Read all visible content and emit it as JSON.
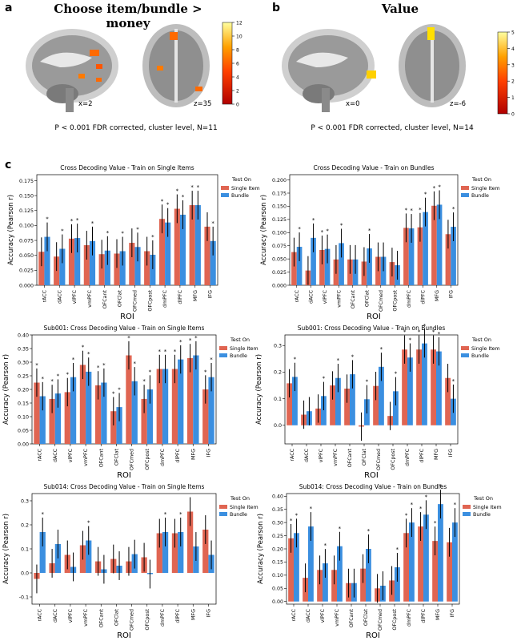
{
  "panels": {
    "a": {
      "letter": "a",
      "title": "Choose item/bundle > money",
      "coord1": "x=2",
      "coord2": "z=35",
      "stat": "P < 0.001 FDR corrected, cluster level, N=11",
      "cbar_ticks": [
        "0",
        "2",
        "4",
        "6",
        "8",
        "10",
        "12"
      ]
    },
    "b": {
      "letter": "b",
      "title": "Value",
      "coord1": "x=0",
      "coord2": "z=-6",
      "stat": "P < 0.001 FDR corrected, cluster level, N=14",
      "cbar_ticks": [
        "0",
        "1",
        "2",
        "3",
        "4",
        "5"
      ]
    },
    "c": {
      "letter": "c"
    }
  },
  "colors": {
    "single": "#e06552",
    "bundle": "#3b8fe0",
    "brain_light": "#d9d9d9",
    "brain_dark": "#555555",
    "blob": "#ff7a00"
  },
  "chart_data": [
    {
      "type": "bar",
      "title": "Cross Decoding Value - Train on Single Items",
      "xlabel": "ROI",
      "ylabel": "Accuracy (Pearson r)",
      "categories": [
        "rACC",
        "dACC",
        "vlPFC",
        "vmPFC",
        "OFCant",
        "OFClat",
        "OFCmed",
        "OFCpost",
        "dmPFC",
        "dlPFC",
        "MFG",
        "IFG"
      ],
      "ylim": [
        0,
        0.185
      ],
      "yticks": [
        "0.000",
        "0.025",
        "0.050",
        "0.075",
        "0.100",
        "0.125",
        "0.150",
        "0.175"
      ],
      "legend_title": "Test On",
      "series": [
        {
          "name": "Single Item",
          "values": [
            0.056,
            0.048,
            0.078,
            0.067,
            0.052,
            0.053,
            0.071,
            0.057,
            0.111,
            0.128,
            0.134,
            0.098
          ],
          "stars": [
            false,
            false,
            true,
            false,
            false,
            false,
            false,
            false,
            true,
            true,
            true,
            false
          ]
        },
        {
          "name": "Bundle",
          "values": [
            0.081,
            0.061,
            0.079,
            0.074,
            0.058,
            0.057,
            0.064,
            0.051,
            0.105,
            0.118,
            0.134,
            0.074
          ],
          "stars": [
            true,
            true,
            true,
            true,
            true,
            true,
            true,
            true,
            true,
            true,
            true,
            true
          ]
        }
      ]
    },
    {
      "type": "bar",
      "title": "Cross Decoding Value - Train on Bundles",
      "xlabel": "ROI",
      "ylabel": "Accuracy (Pearson r)",
      "categories": [
        "rACC",
        "dACC",
        "vlPFC",
        "vmPFC",
        "OFCant",
        "OFClat",
        "OFCmed",
        "OFCpost",
        "dmPFC",
        "dlPFC",
        "MFG",
        "IFG"
      ],
      "ylim": [
        0,
        0.21
      ],
      "yticks": [
        "0.000",
        "0.025",
        "0.050",
        "0.075",
        "0.100",
        "0.125",
        "0.150",
        "0.175",
        "0.200"
      ],
      "legend_title": "Test On",
      "series": [
        {
          "name": "Single Item",
          "values": [
            0.063,
            0.028,
            0.067,
            0.049,
            0.049,
            0.045,
            0.054,
            0.044,
            0.109,
            0.11,
            0.151,
            0.097
          ],
          "stars": [
            false,
            false,
            true,
            false,
            false,
            false,
            false,
            false,
            true,
            true,
            true,
            false
          ]
        },
        {
          "name": "Bundle",
          "values": [
            0.073,
            0.09,
            0.069,
            0.08,
            0.049,
            0.07,
            0.054,
            0.038,
            0.108,
            0.139,
            0.153,
            0.111
          ],
          "stars": [
            true,
            true,
            true,
            true,
            false,
            true,
            false,
            false,
            true,
            true,
            true,
            true
          ]
        }
      ]
    },
    {
      "type": "bar",
      "title": "Sub001: Cross Decoding Value - Train on Single Items",
      "xlabel": "ROI",
      "ylabel": "Accuracy (Pearson r)",
      "categories": [
        "rACC",
        "dACC",
        "vlPFC",
        "vmPFC",
        "OFCant",
        "OFClat",
        "OFCmed",
        "OFCpost",
        "dmPFC",
        "dlPFC",
        "MFG",
        "IFG"
      ],
      "ylim": [
        0,
        0.4
      ],
      "yticks": [
        "0.00",
        "0.05",
        "0.10",
        "0.15",
        "0.20",
        "0.25",
        "0.30",
        "0.35",
        "0.40"
      ],
      "legend_title": "Test On",
      "series": [
        {
          "name": "Single Item",
          "values": [
            0.225,
            0.165,
            0.19,
            0.29,
            0.215,
            0.12,
            0.325,
            0.165,
            0.275,
            0.275,
            0.315,
            0.2
          ],
          "stars": [
            true,
            true,
            true,
            true,
            true,
            true,
            true,
            true,
            true,
            true,
            true,
            true
          ]
        },
        {
          "name": "Bundle",
          "values": [
            0.175,
            0.185,
            0.245,
            0.265,
            0.225,
            0.135,
            0.23,
            0.2,
            0.275,
            0.31,
            0.325,
            0.245
          ],
          "stars": [
            true,
            true,
            true,
            true,
            true,
            true,
            true,
            true,
            true,
            true,
            true,
            true
          ]
        }
      ]
    },
    {
      "type": "bar",
      "title": "Sub001: Cross Decoding Value - Train on Bundles",
      "xlabel": "ROI",
      "ylabel": "Accuracy (Pearson r)",
      "categories": [
        "rACC",
        "dACC",
        "vlPFC",
        "vmPFC",
        "OFCant",
        "OFClat",
        "OFCmed",
        "OFCpost",
        "dmPFC",
        "dlPFC",
        "MFG",
        "IFG"
      ],
      "ylim": [
        -0.07,
        0.34
      ],
      "yticks": [
        "0.0",
        "0.1",
        "0.2",
        "0.3"
      ],
      "ytick_values": [
        0,
        0.1,
        0.2,
        0.3
      ],
      "legend_title": "Test On",
      "series": [
        {
          "name": "Single Item",
          "values": [
            0.158,
            0.04,
            0.063,
            0.15,
            0.138,
            -0.005,
            0.148,
            0.035,
            0.285,
            0.285,
            0.285,
            0.178
          ],
          "stars": [
            false,
            false,
            false,
            false,
            false,
            false,
            false,
            false,
            true,
            true,
            true,
            false
          ]
        },
        {
          "name": "Bundle",
          "values": [
            0.182,
            0.053,
            0.11,
            0.178,
            0.192,
            0.098,
            0.22,
            0.128,
            0.255,
            0.308,
            0.278,
            0.1
          ],
          "stars": [
            true,
            false,
            true,
            true,
            true,
            true,
            true,
            true,
            true,
            true,
            true,
            true
          ]
        }
      ]
    },
    {
      "type": "bar",
      "title": "Sub014: Cross Decoding Value - Train on Single Items",
      "xlabel": "ROI",
      "ylabel": "Accuracy (Pearson r)",
      "categories": [
        "rACC",
        "dACC",
        "vlPFC",
        "vmPFC",
        "OFCant",
        "OFClat",
        "OFCmed",
        "OFCpost",
        "dmPFC",
        "dlPFC",
        "MFG",
        "IFG"
      ],
      "ylim": [
        -0.13,
        0.33
      ],
      "yticks": [
        "-0.1",
        "0.0",
        "0.1",
        "0.2",
        "0.3"
      ],
      "ytick_values": [
        -0.1,
        0,
        0.1,
        0.2,
        0.3
      ],
      "legend_title": "Test On",
      "series": [
        {
          "name": "Single Item",
          "values": [
            -0.025,
            0.04,
            0.075,
            0.115,
            0.048,
            0.058,
            0.048,
            0.065,
            0.165,
            0.165,
            0.255,
            0.18
          ],
          "stars": [
            false,
            false,
            false,
            false,
            false,
            false,
            false,
            false,
            false,
            false,
            false,
            false
          ]
        },
        {
          "name": "Bundle",
          "values": [
            0.17,
            0.12,
            0.025,
            0.135,
            0.015,
            0.03,
            0.078,
            -0.005,
            0.17,
            0.17,
            0.11,
            0.075
          ],
          "stars": [
            true,
            false,
            false,
            true,
            false,
            false,
            false,
            false,
            true,
            true,
            false,
            false
          ]
        }
      ]
    },
    {
      "type": "bar",
      "title": "Sub014: Cross Decoding Value - Train on Bundles",
      "xlabel": "ROI",
      "ylabel": "Accuracy (Pearson r)",
      "categories": [
        "rACC",
        "dACC",
        "vlPFC",
        "vmPFC",
        "OFCant",
        "OFClat",
        "OFCmed",
        "OFCpost",
        "dmPFC",
        "dlPFC",
        "MFG",
        "IFG"
      ],
      "ylim": [
        -0.01,
        0.41
      ],
      "yticks": [
        "0.00",
        "0.05",
        "0.10",
        "0.15",
        "0.20",
        "0.25",
        "0.30",
        "0.35",
        "0.40"
      ],
      "legend_title": "Test On",
      "series": [
        {
          "name": "Single Item",
          "values": [
            0.24,
            0.09,
            0.12,
            0.12,
            0.07,
            0.125,
            0.05,
            0.08,
            0.26,
            0.285,
            0.23,
            0.225
          ],
          "stars": [
            true,
            false,
            false,
            false,
            false,
            false,
            false,
            false,
            true,
            true,
            true,
            false
          ]
        },
        {
          "name": "Bundle",
          "values": [
            0.26,
            0.285,
            0.145,
            0.21,
            0.07,
            0.2,
            0.06,
            0.13,
            0.3,
            0.33,
            0.37,
            0.3
          ],
          "stars": [
            true,
            true,
            true,
            true,
            false,
            true,
            false,
            true,
            true,
            true,
            true,
            true
          ]
        }
      ]
    }
  ]
}
